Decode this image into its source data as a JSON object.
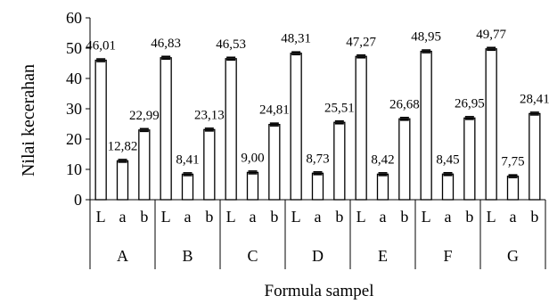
{
  "chart_data": {
    "type": "bar",
    "xlabel": "Formula sampel",
    "ylabel": "Nilai kecerahan",
    "ylim": [
      0,
      60
    ],
    "yticks": [
      "0",
      "10",
      "20",
      "30",
      "40",
      "50",
      "60"
    ],
    "grid": false,
    "groups": [
      {
        "name": "A",
        "bars": [
          {
            "label": "L",
            "value": 46.01,
            "value_label": "46,01"
          },
          {
            "label": "a",
            "value": 12.82,
            "value_label": "12,82"
          },
          {
            "label": "b",
            "value": 22.99,
            "value_label": "22,99"
          }
        ]
      },
      {
        "name": "B",
        "bars": [
          {
            "label": "L",
            "value": 46.83,
            "value_label": "46,83"
          },
          {
            "label": "a",
            "value": 8.41,
            "value_label": "8,41"
          },
          {
            "label": "b",
            "value": 23.13,
            "value_label": "23,13"
          }
        ]
      },
      {
        "name": "C",
        "bars": [
          {
            "label": "L",
            "value": 46.53,
            "value_label": "46,53"
          },
          {
            "label": "a",
            "value": 9.0,
            "value_label": "9,00"
          },
          {
            "label": "b",
            "value": 24.81,
            "value_label": "24,81"
          }
        ]
      },
      {
        "name": "D",
        "bars": [
          {
            "label": "L",
            "value": 48.31,
            "value_label": "48,31"
          },
          {
            "label": "a",
            "value": 8.73,
            "value_label": "8,73"
          },
          {
            "label": "b",
            "value": 25.51,
            "value_label": "25,51"
          }
        ]
      },
      {
        "name": "E",
        "bars": [
          {
            "label": "L",
            "value": 47.27,
            "value_label": "47,27"
          },
          {
            "label": "a",
            "value": 8.42,
            "value_label": "8,42"
          },
          {
            "label": "b",
            "value": 26.68,
            "value_label": "26,68"
          }
        ]
      },
      {
        "name": "F",
        "bars": [
          {
            "label": "L",
            "value": 48.95,
            "value_label": "48,95"
          },
          {
            "label": "a",
            "value": 8.45,
            "value_label": "8,45"
          },
          {
            "label": "b",
            "value": 26.95,
            "value_label": "26,95"
          }
        ]
      },
      {
        "name": "G",
        "bars": [
          {
            "label": "L",
            "value": 49.77,
            "value_label": "49,77"
          },
          {
            "label": "a",
            "value": 7.75,
            "value_label": "7,75"
          },
          {
            "label": "b",
            "value": 28.41,
            "value_label": "28,41"
          }
        ]
      }
    ],
    "bar_fill": "#ffffff",
    "bar_stroke": "#000000"
  }
}
